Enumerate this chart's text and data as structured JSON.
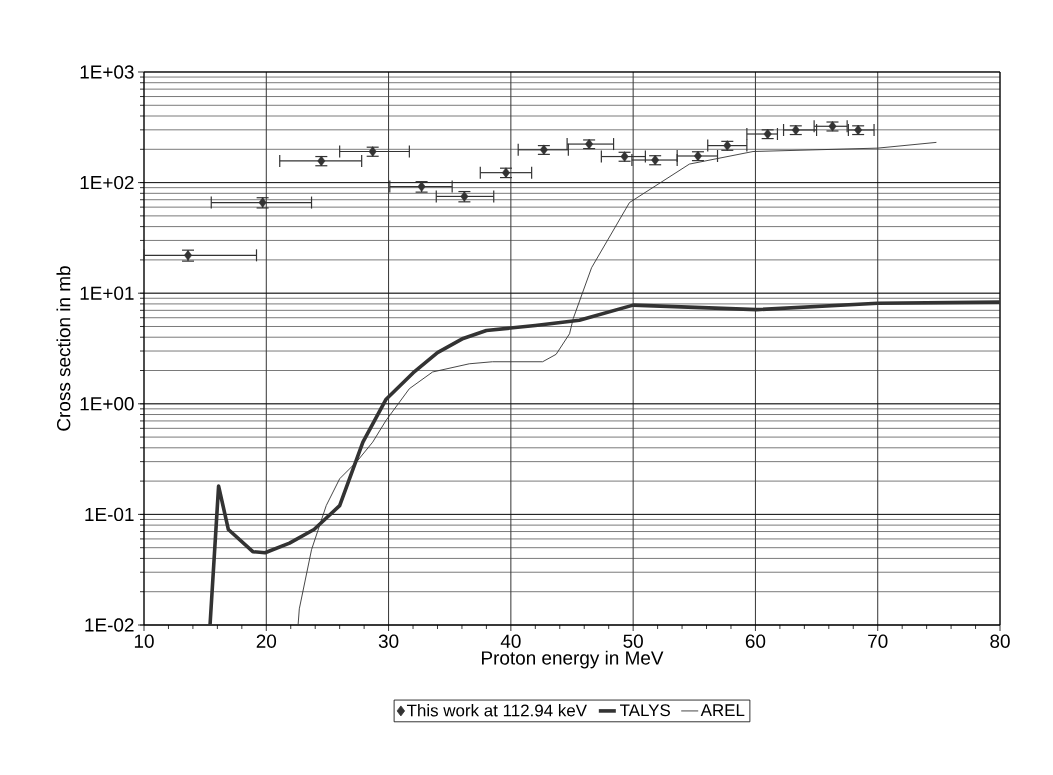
{
  "chart_data": {
    "type": "line",
    "xlabel": "Proton energy in MeV",
    "ylabel": "Cross section in mb",
    "log": "y",
    "grid": true,
    "legend": "bottom",
    "xlim": [
      10,
      80
    ],
    "xticks": [
      10,
      20,
      30,
      40,
      50,
      60,
      70,
      80
    ],
    "ylim": [
      0.01,
      1000
    ],
    "yticks": [
      {
        "value": 0.01,
        "label": "1E-02"
      },
      {
        "value": 0.1,
        "label": "1E-01"
      },
      {
        "value": 1,
        "label": "1E+00"
      },
      {
        "value": 10,
        "label": "1E+01"
      },
      {
        "value": 100,
        "label": "1E+02"
      },
      {
        "value": 1000,
        "label": "1E+03"
      }
    ],
    "series": [
      {
        "name": "This work at 112.94 keV",
        "type": "scatter",
        "marker": "diamond",
        "color": "#333333",
        "x": [
          13.6,
          19.7,
          24.5,
          28.7,
          32.7,
          36.2,
          39.6,
          42.7,
          46.4,
          49.3,
          51.8,
          55.3,
          57.7,
          61.0,
          63.3,
          66.3,
          68.4
        ],
        "values": [
          22,
          66,
          157,
          191,
          92,
          75,
          123,
          198,
          223,
          172,
          160,
          174,
          216,
          275,
          299,
          323,
          299
        ],
        "errors": [
          2.5,
          7,
          15,
          18,
          10,
          8,
          12,
          18,
          20,
          16,
          15,
          16,
          20,
          25,
          27,
          30,
          27
        ],
        "xerrors": [
          [
            10,
            19.2
          ],
          [
            15.5,
            23.7
          ],
          [
            21.1,
            27.8
          ],
          [
            26.0,
            31.7
          ],
          [
            30.1,
            35.2
          ],
          [
            33.9,
            38.6
          ],
          [
            37.5,
            41.7
          ],
          [
            40.6,
            44.7
          ],
          [
            44.6,
            48.4
          ],
          [
            47.4,
            51.0
          ],
          [
            49.9,
            53.6
          ],
          [
            53.6,
            56.9
          ],
          [
            56.1,
            59.3
          ],
          [
            59.3,
            61.8
          ],
          [
            62.3,
            65.0
          ],
          [
            64.8,
            67.5
          ],
          [
            67.6,
            69.7
          ]
        ]
      },
      {
        "name": "TALYS",
        "color": "#333333",
        "x": [
          15.4,
          16.1,
          16.9,
          18.9,
          19.9,
          21.9,
          23.9,
          26.0,
          27.9,
          29.8,
          32.0,
          34.0,
          36.1,
          38.0,
          42.0,
          45.6,
          50.0,
          60.1,
          70.0,
          80.0
        ],
        "values": [
          0.01,
          0.18,
          0.073,
          0.046,
          0.045,
          0.055,
          0.073,
          0.12,
          0.45,
          1.1,
          1.9,
          2.9,
          3.9,
          4.6,
          5.1,
          5.7,
          7.8,
          7.1,
          8.1,
          8.3
        ]
      },
      {
        "name": "AREL",
        "color": "#333333",
        "x": [
          22.6,
          22.7,
          23.7,
          24.9,
          26.0,
          27.4,
          28.7,
          29.8,
          31.7,
          33.6,
          36.6,
          38.5,
          42.6,
          43.7,
          44.8,
          45.1,
          46.6,
          49.7,
          54.6,
          59.8,
          70.0,
          74.8
        ],
        "values": [
          0.01,
          0.014,
          0.048,
          0.12,
          0.21,
          0.3,
          0.45,
          0.71,
          1.37,
          1.94,
          2.3,
          2.4,
          2.4,
          2.8,
          4.3,
          5.9,
          17,
          66,
          147,
          191,
          205,
          231
        ]
      }
    ]
  }
}
